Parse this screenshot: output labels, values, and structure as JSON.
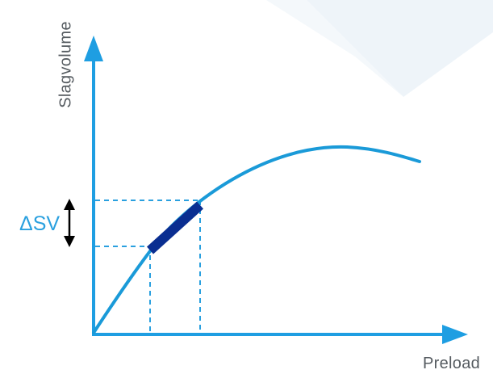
{
  "labels": {
    "y_axis": "Slagvolume",
    "x_axis": "Preload",
    "delta": "ΔSV"
  },
  "colors": {
    "axis": "#1e9ee2",
    "curve": "#1a9ad8",
    "guide": "#2aa0df",
    "highlight": "#0a2e91",
    "arrow": "#000000",
    "text": "#555b60",
    "background_shape": "#eef4f9"
  },
  "icons": {
    "delta_indicator": "double-headed-arrow-icon"
  }
}
